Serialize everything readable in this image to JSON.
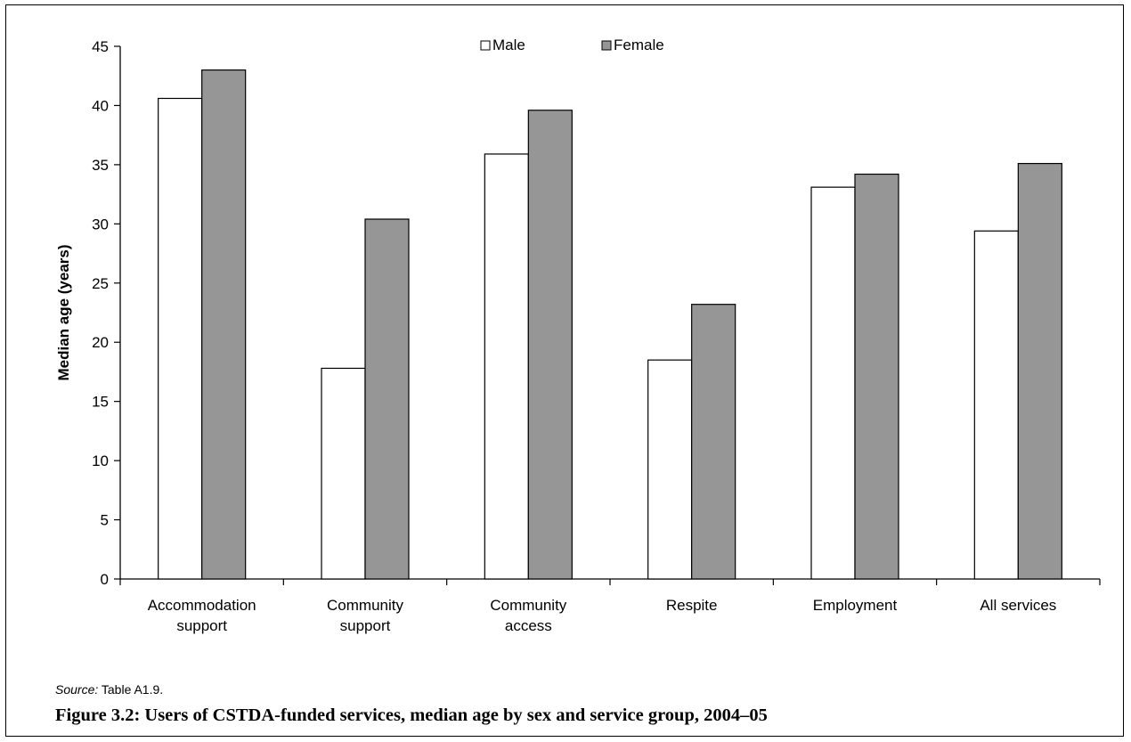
{
  "chart_data": {
    "type": "bar",
    "title": "",
    "xlabel": "",
    "ylabel": "Median age (years)",
    "ylim": [
      0,
      45
    ],
    "ytick_step": 5,
    "grid": false,
    "legend_position": "top-center",
    "category_labels": [
      [
        "Accommodation",
        "support"
      ],
      [
        "Community",
        "support"
      ],
      [
        "Community",
        "access"
      ],
      [
        "Respite"
      ],
      [
        "Employment"
      ],
      [
        "All services"
      ]
    ],
    "categories": [
      "Accommodation support",
      "Community support",
      "Community access",
      "Respite",
      "Employment",
      "All services"
    ],
    "series": [
      {
        "name": "Male",
        "color": "#ffffff",
        "values": [
          40.6,
          17.8,
          35.9,
          18.5,
          33.1,
          29.4
        ]
      },
      {
        "name": "Female",
        "color": "#969696",
        "values": [
          43.0,
          30.4,
          39.6,
          23.2,
          34.2,
          35.1
        ]
      }
    ]
  },
  "source": {
    "label": "Source:",
    "text": " Table A1.9."
  },
  "caption": "Figure 3.2: Users of CSTDA-funded services, median age by sex and service group, 2004–05"
}
